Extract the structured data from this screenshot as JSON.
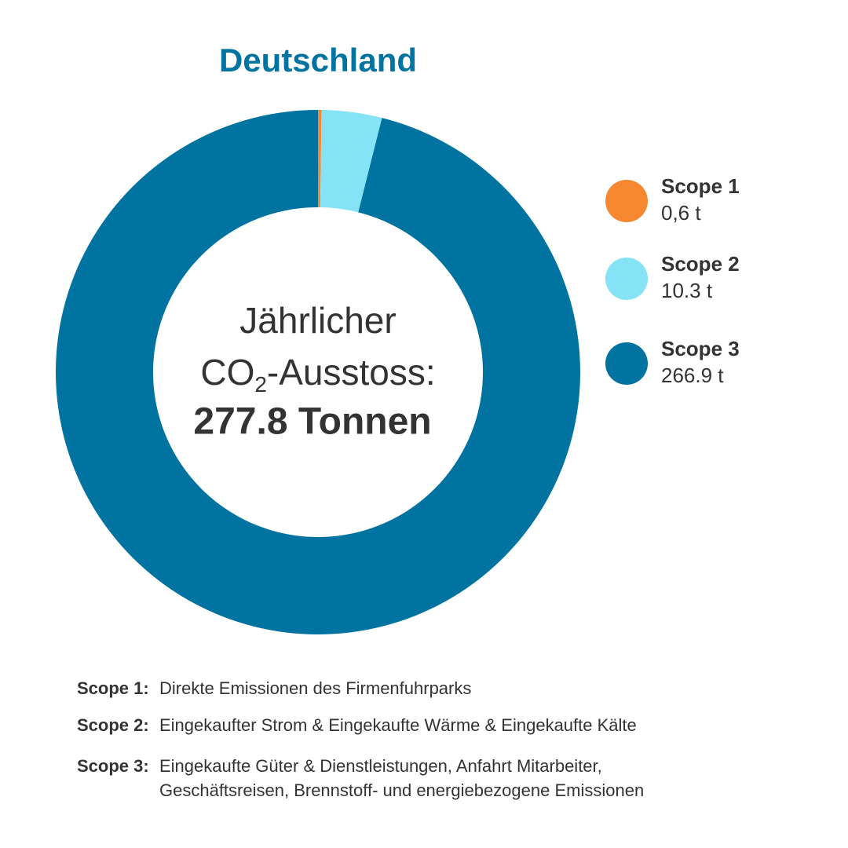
{
  "chart_data": {
    "type": "pie",
    "title": "Deutschland",
    "categories": [
      "Scope 1",
      "Scope 2",
      "Scope 3"
    ],
    "values": [
      0.6,
      10.3,
      266.9
    ],
    "value_labels": [
      "0,6 t",
      "10.3 t",
      "266.9 t"
    ],
    "colors": [
      "#f7882f",
      "#85e3f5",
      "#0073a0"
    ],
    "center_text": {
      "line1": "Jährlicher",
      "line2_main": "CO",
      "line2_sub": "2",
      "line2_rest": "-Ausstoss:",
      "total": "277.8 Tonnen"
    },
    "notes": [
      {
        "term": "Scope 1:",
        "lines": [
          "Direkte Emissionen des Firmenfuhrparks"
        ]
      },
      {
        "term": "Scope 2:",
        "lines": [
          "Eingekaufter Strom & Eingekaufte Wärme & Eingekaufte Kälte"
        ]
      },
      {
        "term": "Scope 3:",
        "lines": [
          "Eingekaufte Güter & Dienstleistungen, Anfahrt Mitarbeiter,",
          "Geschäftsreisen, Brennstoff- und energiebezogene Emissionen"
        ]
      }
    ]
  }
}
